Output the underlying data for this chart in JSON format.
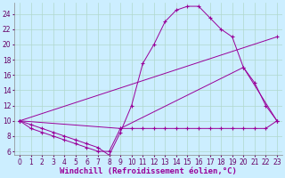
{
  "bg_color": "#cceeff",
  "grid_color": "#b0d8cc",
  "line_color": "#990099",
  "marker": "+",
  "xlabel": "Windchill (Refroidissement éolien,°C)",
  "xlabel_fontsize": 6.5,
  "tick_fontsize": 5.5,
  "xlim": [
    -0.5,
    23.5
  ],
  "ylim": [
    5.5,
    25.5
  ],
  "yticks": [
    6,
    8,
    10,
    12,
    14,
    16,
    18,
    20,
    22,
    24
  ],
  "xticks": [
    0,
    1,
    2,
    3,
    4,
    5,
    6,
    7,
    8,
    9,
    10,
    11,
    12,
    13,
    14,
    15,
    16,
    17,
    18,
    19,
    20,
    21,
    22,
    23
  ],
  "line1_x": [
    0,
    1,
    2,
    3,
    4,
    5,
    6,
    7,
    8,
    9,
    10,
    11,
    12,
    13,
    14,
    15,
    16,
    17,
    18,
    19,
    20,
    21,
    22,
    23
  ],
  "line1_y": [
    10,
    9,
    8.5,
    8,
    7.5,
    7,
    6.5,
    6,
    6,
    9,
    9,
    9,
    9,
    9,
    9,
    9,
    9,
    9,
    9,
    9,
    9,
    9,
    9,
    10
  ],
  "line2_x": [
    0,
    1,
    2,
    3,
    4,
    5,
    6,
    7,
    8,
    9,
    10,
    11,
    12,
    13,
    14,
    15,
    16,
    17,
    18,
    19,
    20,
    21,
    22,
    23
  ],
  "line2_y": [
    10,
    9.5,
    9,
    8.5,
    8,
    7.5,
    7,
    6.5,
    5.5,
    8.5,
    12,
    17.5,
    20,
    23,
    24.5,
    25,
    25,
    23.5,
    22,
    21,
    17,
    15,
    12,
    10
  ],
  "line3_x": [
    0,
    9,
    20,
    23
  ],
  "line3_y": [
    10,
    9,
    17,
    10
  ],
  "line4_x": [
    0,
    23
  ],
  "line4_y": [
    10,
    21
  ]
}
